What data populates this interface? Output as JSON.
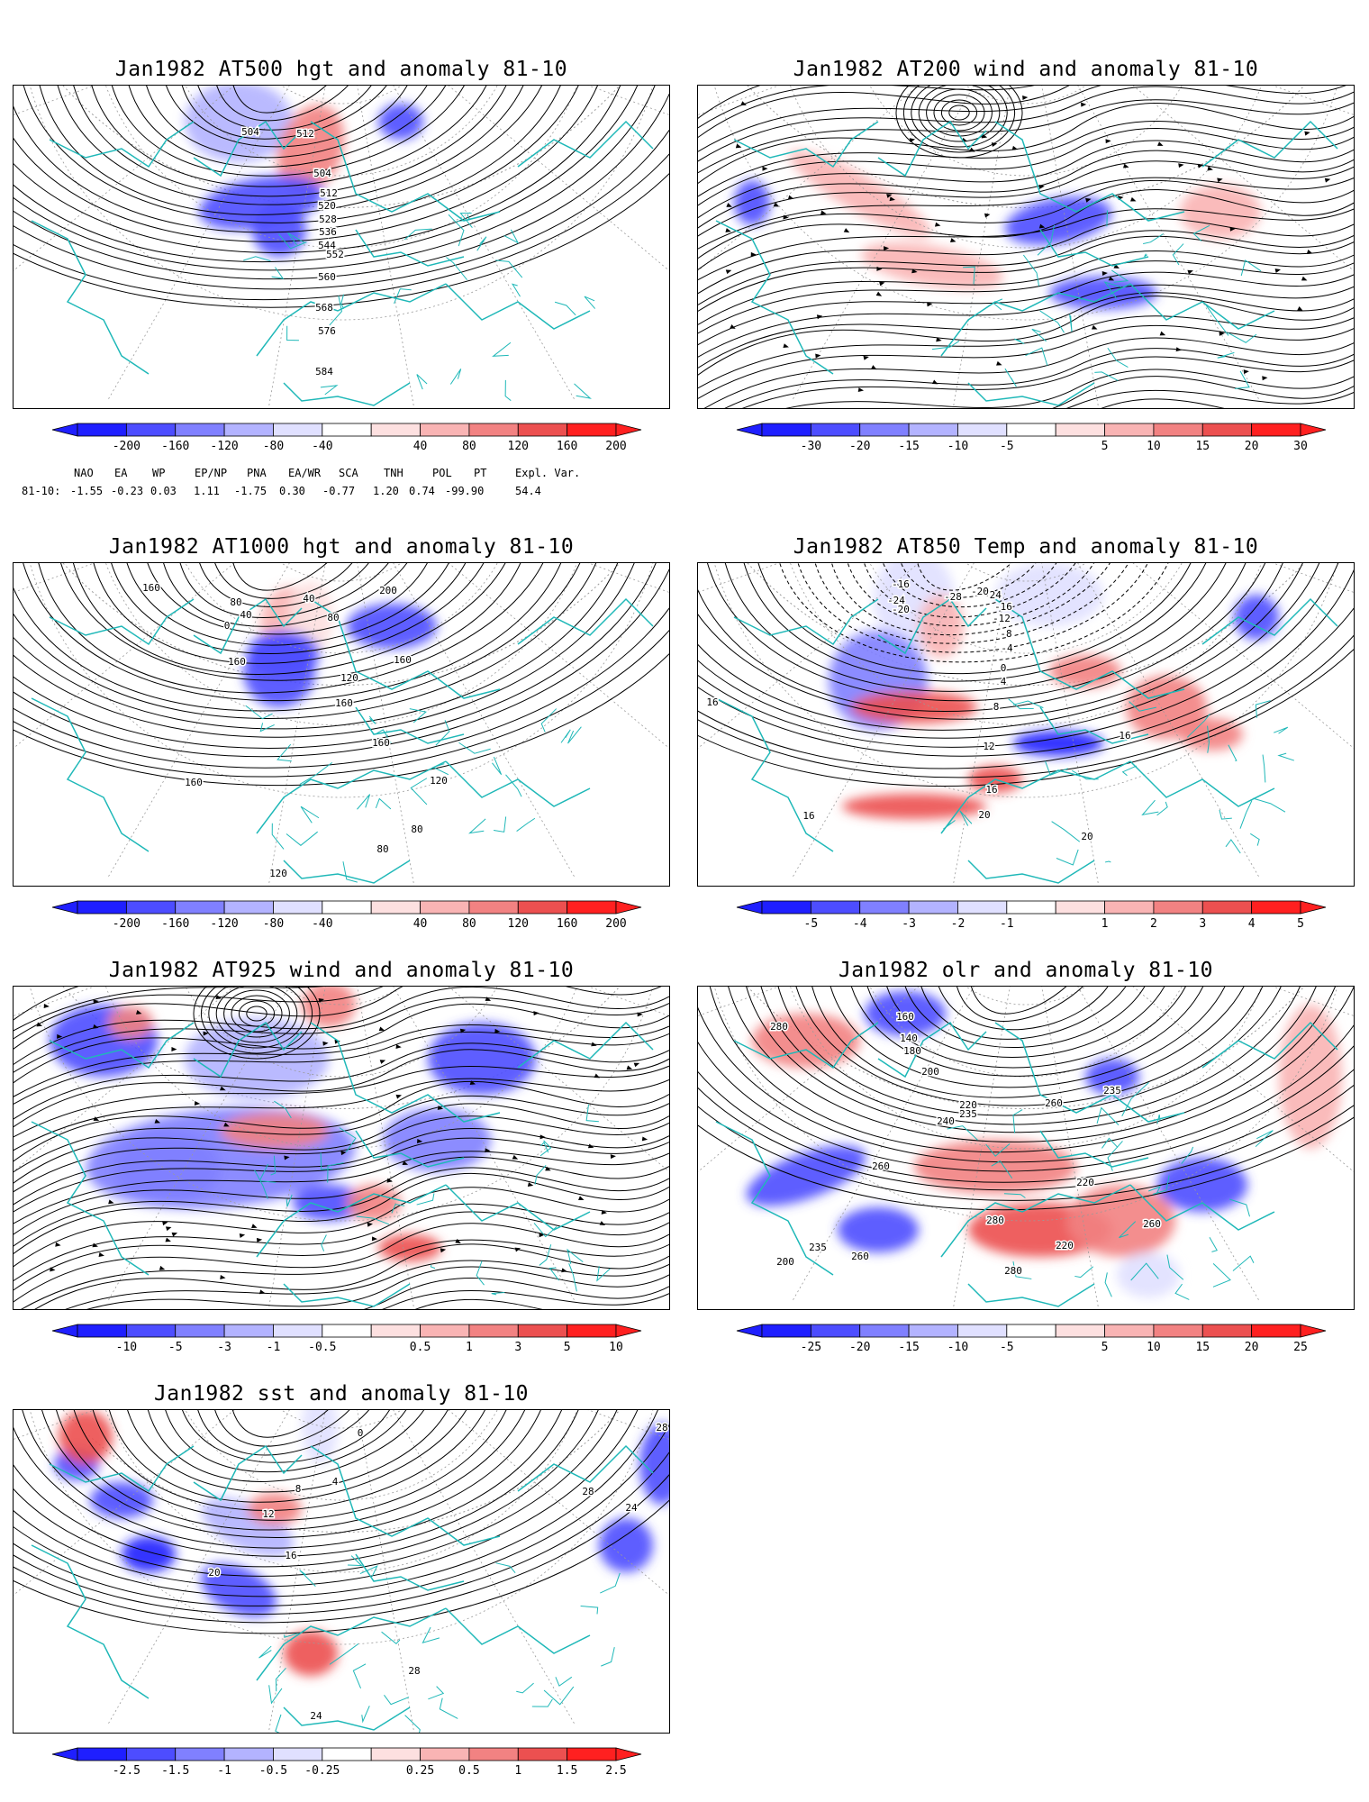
{
  "colors": {
    "coast": "#1fb8b8",
    "contour": "#000000",
    "grid": "#9a9a9a",
    "pos_scale": [
      "#fde0e0",
      "#f9b4b4",
      "#f28282",
      "#ec5050",
      "#ff2020"
    ],
    "neg_scale": [
      "#1f1fff",
      "#4d4dff",
      "#8080ff",
      "#b3b3ff",
      "#e0e0ff"
    ]
  },
  "panels": [
    {
      "title": "Jan1982 AT500 hgt and anomaly 81-10",
      "kind": "contour-anomaly",
      "colorbar": [
        "-200",
        "-160",
        "-120",
        "-80",
        "-40",
        "40",
        "80",
        "120",
        "160",
        "200"
      ],
      "contour_labels": [
        "504",
        "512",
        "504",
        "512",
        "520",
        "528",
        "536",
        "544",
        "552",
        "560",
        "568",
        "576",
        "584"
      ],
      "index_table": {
        "header": [
          "NAO",
          "EA",
          "WP",
          "EP/NP",
          "PNA",
          "EA/WR",
          "SCA",
          "TNH",
          "POL",
          "PT",
          "Expl. Var."
        ],
        "row_label": "81-10:",
        "values": [
          "-1.55",
          "-0.23",
          "0.03",
          "1.11",
          "-1.75",
          "0.30",
          "-0.77",
          "1.20",
          "0.74",
          "-99.90",
          "54.4"
        ]
      }
    },
    {
      "title": "Jan1982 AT200 wind and anomaly 81-10",
      "kind": "streamline-anomaly",
      "colorbar": [
        "-30",
        "-20",
        "-15",
        "-10",
        "-5",
        "5",
        "10",
        "15",
        "20",
        "30"
      ],
      "contour_labels": []
    },
    {
      "title": "Jan1982 AT1000 hgt and anomaly 81-10",
      "kind": "contour-anomaly",
      "colorbar": [
        "-200",
        "-160",
        "-120",
        "-80",
        "-40",
        "40",
        "80",
        "120",
        "160",
        "200"
      ],
      "contour_labels": [
        "160",
        "80",
        "40",
        "0",
        "160",
        "40",
        "80",
        "120",
        "160",
        "200",
        "160",
        "160",
        "120",
        "80",
        "160",
        "120",
        "80"
      ]
    },
    {
      "title": "Jan1982 AT850 Temp and anomaly 81-10",
      "kind": "contour-anomaly",
      "colorbar": [
        "-5",
        "-4",
        "-3",
        "-2",
        "-1",
        "1",
        "2",
        "3",
        "4",
        "5"
      ],
      "contour_labels": [
        "-16",
        "-24",
        "-20",
        "-28",
        "-24",
        "-20",
        "-16",
        "-12",
        "-8",
        "-4",
        "0",
        "4",
        "8",
        "12",
        "16",
        "20",
        "16",
        "16",
        "20",
        "16"
      ]
    },
    {
      "title": "Jan1982 AT925 wind and anomaly 81-10",
      "kind": "streamline-anomaly",
      "colorbar": [
        "-10",
        "-5",
        "-3",
        "-1",
        "-0.5",
        "0.5",
        "1",
        "3",
        "5",
        "10"
      ],
      "contour_labels": []
    },
    {
      "title": "Jan1982 olr and anomaly 81-10",
      "kind": "contour-anomaly",
      "colorbar": [
        "-25",
        "-20",
        "-15",
        "-10",
        "-5",
        "5",
        "10",
        "15",
        "20",
        "25"
      ],
      "contour_labels": [
        "280",
        "160",
        "140",
        "180",
        "200",
        "220",
        "235",
        "240",
        "260",
        "280",
        "260",
        "235",
        "220",
        "200",
        "235",
        "260",
        "280",
        "220",
        "260"
      ]
    },
    {
      "title": "Jan1982 sst and anomaly 81-10",
      "kind": "contour-anomaly",
      "colorbar": [
        "-2.5",
        "-1.5",
        "-1",
        "-0.5",
        "-0.25",
        "0.25",
        "0.5",
        "1",
        "1.5",
        "2.5"
      ],
      "contour_labels": [
        "0",
        "4",
        "8",
        "12",
        "16",
        "20",
        "24",
        "28",
        "28",
        "24",
        "28"
      ]
    }
  ]
}
